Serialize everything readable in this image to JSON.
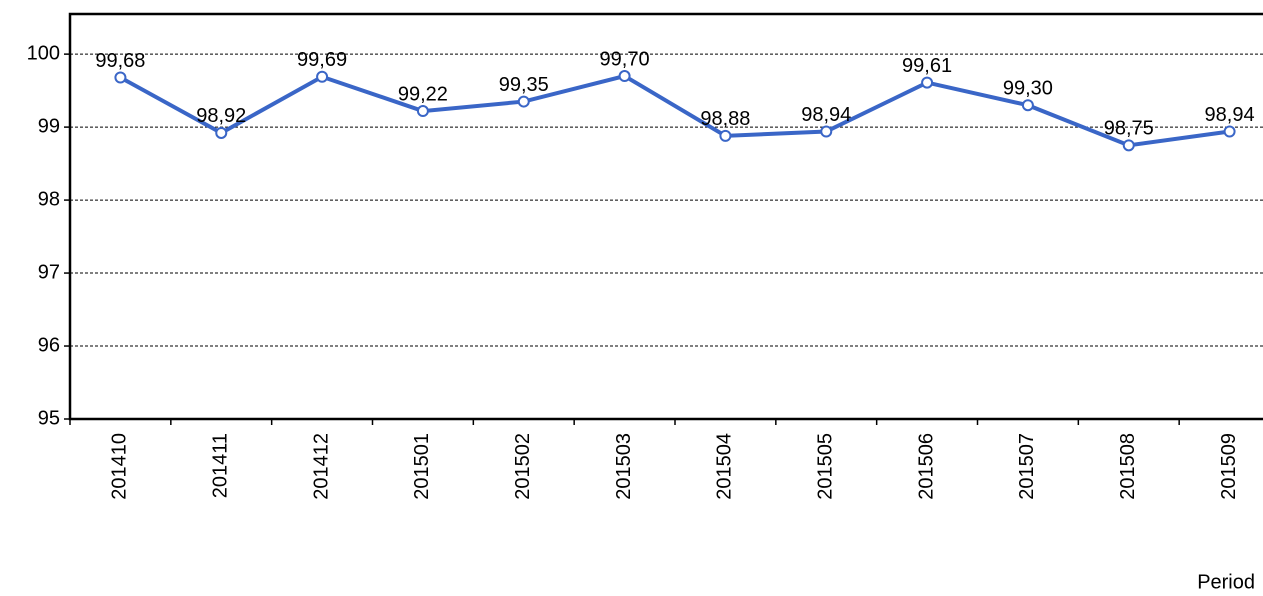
{
  "chart_data": {
    "type": "line",
    "x_label": "Period",
    "categories": [
      "201410",
      "201411",
      "201412",
      "201501",
      "201502",
      "201503",
      "201504",
      "201505",
      "201506",
      "201507",
      "201508",
      "201509"
    ],
    "series": [
      {
        "color": "#3a66c7",
        "values": [
          99.68,
          98.92,
          99.69,
          99.22,
          99.35,
          99.7,
          98.88,
          98.94,
          99.61,
          99.3,
          98.75,
          98.94
        ],
        "value_labels": [
          "99,68",
          "98,92",
          "99,69",
          "99,22",
          "99,35",
          "99,70",
          "98,88",
          "98,94",
          "99,61",
          "99,30",
          "98,75",
          "98,94"
        ]
      }
    ],
    "ylim": [
      95,
      100.55
    ],
    "yticks": [
      95,
      96,
      97,
      98,
      99,
      100
    ],
    "grid": true
  }
}
